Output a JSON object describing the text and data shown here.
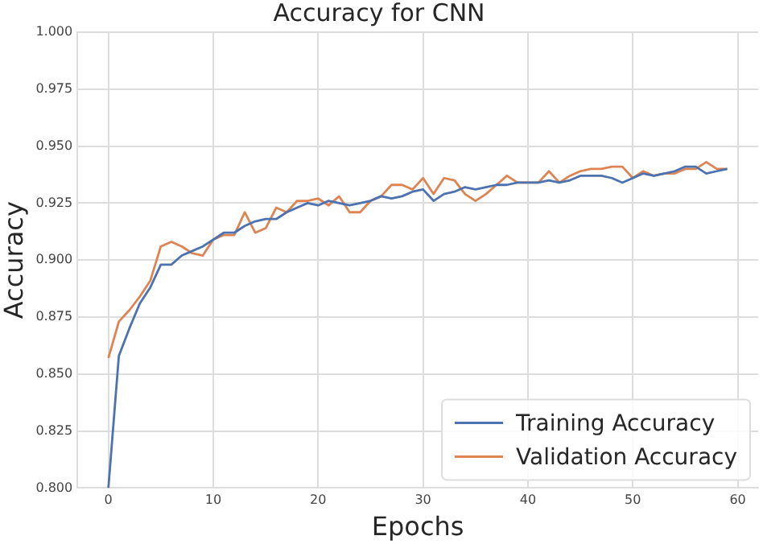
{
  "chart_data": {
    "type": "line",
    "title": "Accuracy for CNN",
    "xlabel": "Epochs",
    "ylabel": "Accuracy",
    "x": [
      0,
      1,
      2,
      3,
      4,
      5,
      6,
      7,
      8,
      9,
      10,
      11,
      12,
      13,
      14,
      15,
      16,
      17,
      18,
      19,
      20,
      21,
      22,
      23,
      24,
      25,
      26,
      27,
      28,
      29,
      30,
      31,
      32,
      33,
      34,
      35,
      36,
      37,
      38,
      39,
      40,
      41,
      42,
      43,
      44,
      45,
      46,
      47,
      48,
      49,
      50,
      51,
      52,
      53,
      54,
      55,
      56,
      57,
      58,
      59
    ],
    "series": [
      {
        "name": "Training Accuracy",
        "color": "#4c72b0",
        "values": [
          0.8,
          0.858,
          0.87,
          0.881,
          0.888,
          0.898,
          0.898,
          0.902,
          0.904,
          0.906,
          0.909,
          0.912,
          0.912,
          0.915,
          0.917,
          0.918,
          0.918,
          0.921,
          0.923,
          0.925,
          0.924,
          0.926,
          0.925,
          0.924,
          0.925,
          0.926,
          0.928,
          0.927,
          0.928,
          0.93,
          0.931,
          0.926,
          0.929,
          0.93,
          0.932,
          0.931,
          0.932,
          0.933,
          0.933,
          0.934,
          0.934,
          0.934,
          0.935,
          0.934,
          0.935,
          0.937,
          0.937,
          0.937,
          0.936,
          0.934,
          0.936,
          0.938,
          0.937,
          0.938,
          0.939,
          0.941,
          0.941,
          0.938,
          0.939,
          0.94
        ]
      },
      {
        "name": "Validation Accuracy",
        "color": "#dd8452",
        "values": [
          0.857,
          0.873,
          0.878,
          0.884,
          0.891,
          0.906,
          0.908,
          0.906,
          0.903,
          0.902,
          0.909,
          0.911,
          0.911,
          0.921,
          0.912,
          0.914,
          0.923,
          0.921,
          0.926,
          0.926,
          0.927,
          0.924,
          0.928,
          0.921,
          0.921,
          0.926,
          0.928,
          0.933,
          0.933,
          0.931,
          0.936,
          0.929,
          0.936,
          0.935,
          0.929,
          0.926,
          0.929,
          0.933,
          0.937,
          0.934,
          0.934,
          0.934,
          0.939,
          0.934,
          0.937,
          0.939,
          0.94,
          0.94,
          0.941,
          0.941,
          0.936,
          0.939,
          0.937,
          0.938,
          0.938,
          0.94,
          0.94,
          0.943,
          0.94,
          0.94
        ]
      }
    ],
    "xlim": [
      -2.95,
      61.95
    ],
    "xticks": [
      0,
      10,
      20,
      30,
      40,
      50,
      60
    ],
    "ylim": [
      0.8,
      1.0
    ],
    "yticks": [
      {
        "value": 0.8,
        "label": "0.800"
      },
      {
        "value": 0.825,
        "label": "0.825"
      },
      {
        "value": 0.85,
        "label": "0.850"
      },
      {
        "value": 0.875,
        "label": "0.875"
      },
      {
        "value": 0.9,
        "label": "0.900"
      },
      {
        "value": 0.925,
        "label": "0.925"
      },
      {
        "value": 0.95,
        "label": "0.950"
      },
      {
        "value": 0.975,
        "label": "0.975"
      },
      {
        "value": 1.0,
        "label": "1.000"
      }
    ],
    "grid": true,
    "legend": "bottom right",
    "marker": "none",
    "line_style": "solid"
  }
}
